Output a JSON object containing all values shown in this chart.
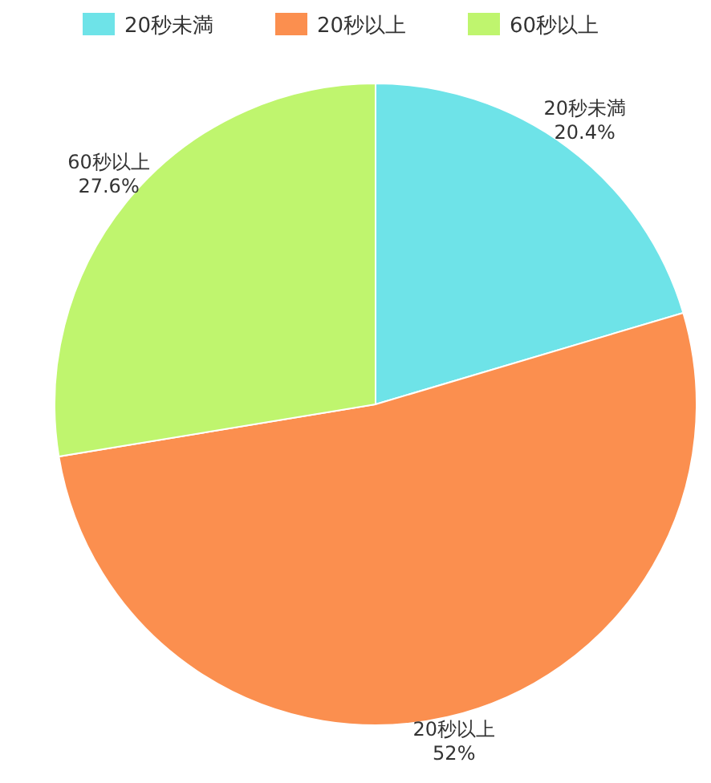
{
  "chart_data": {
    "type": "pie",
    "categories": [
      "20秒未満",
      "20秒以上",
      "60秒以上"
    ],
    "values": [
      20.4,
      52,
      27.6
    ],
    "value_labels": [
      "20.4%",
      "52%",
      "27.6%"
    ],
    "colors": [
      "#6ee3e8",
      "#fb8f4f",
      "#bff56e"
    ],
    "legend": "top"
  }
}
